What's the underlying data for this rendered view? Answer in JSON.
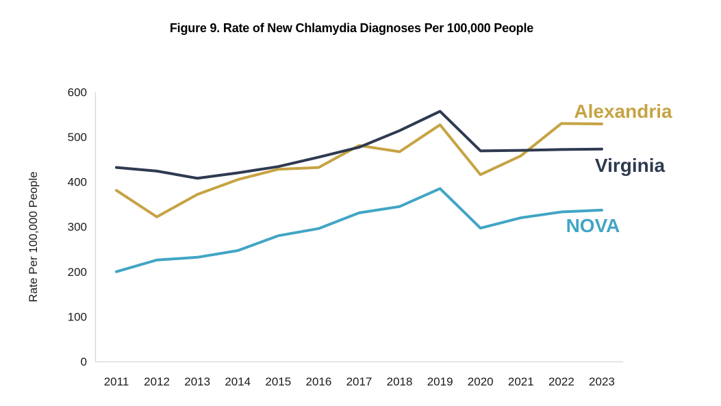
{
  "chart_data": {
    "type": "line",
    "title": "Figure 9. Rate of New Chlamydia Diagnoses Per 100,000 People",
    "ylabel": "Rate Per 100,000 People",
    "xlabel": "",
    "x": [
      "2011",
      "2012",
      "2013",
      "2014",
      "2015",
      "2016",
      "2017",
      "2018",
      "2019",
      "2020",
      "2021",
      "2022",
      "2023"
    ],
    "ylim": [
      0,
      600
    ],
    "yticks": [
      0,
      100,
      200,
      300,
      400,
      500,
      600
    ],
    "grid": false,
    "legend_position": "end-of-line-labels",
    "axis_color": "#d6d6d6",
    "tick_label_color": "#1a1a1a",
    "series": [
      {
        "name": "Alexandria",
        "color": "#C6A343",
        "values": [
          381,
          322,
          372,
          405,
          428,
          432,
          481,
          467,
          527,
          416,
          458,
          530,
          529
        ]
      },
      {
        "name": "Virginia",
        "color": "#2E3A50",
        "values": [
          432,
          424,
          408,
          420,
          434,
          455,
          477,
          514,
          557,
          469,
          470,
          472,
          473
        ]
      },
      {
        "name": "NOVA",
        "color": "#41A5C5",
        "values": [
          200,
          226,
          232,
          247,
          280,
          296,
          331,
          345,
          385,
          297,
          320,
          333,
          337
        ]
      }
    ]
  }
}
